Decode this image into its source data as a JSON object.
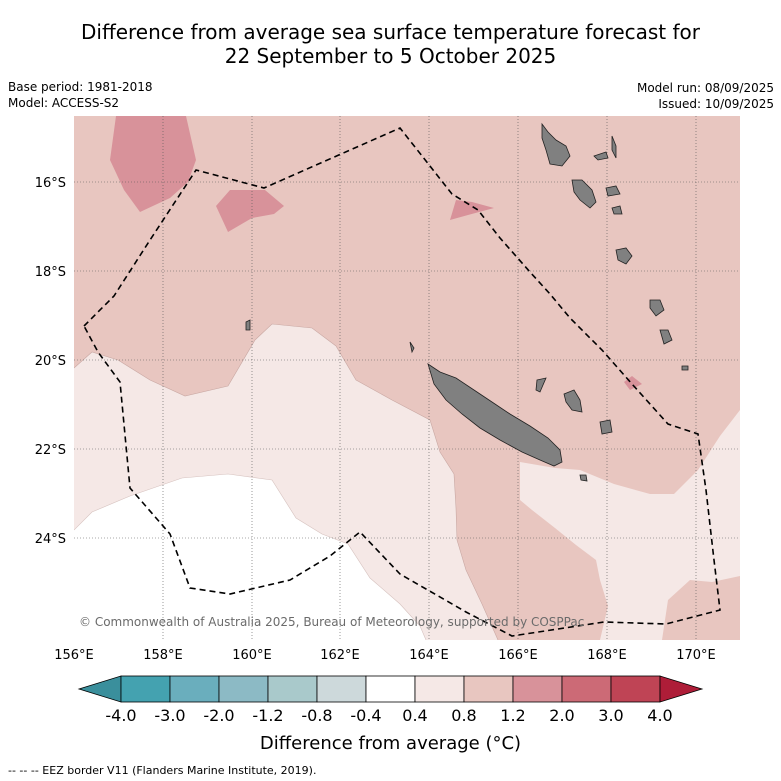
{
  "title_line1": "Difference from average sea surface temperature forecast for",
  "title_line2": "22 September to 5 October 2025",
  "base_period": "Base period: 1981-2018",
  "model": "Model: ACCESS-S2",
  "model_run": "Model run: 08/09/2025",
  "issued": "Issued: 10/09/2025",
  "credit": "© Commonwealth of Australia 2025, Bureau of Meteorology, supported by COSPPac",
  "lat_labels": [
    "16°S",
    "18°S",
    "20°S",
    "22°S",
    "24°S"
  ],
  "lon_labels": [
    "156°E",
    "158°E",
    "160°E",
    "162°E",
    "164°E",
    "166°E",
    "168°E",
    "170°E"
  ],
  "colorbar": {
    "title": "Difference from average (°C)",
    "labels": [
      "-4.0",
      "-3.0",
      "-2.0",
      "-1.2",
      "-0.8",
      "-0.4",
      "0.4",
      "0.8",
      "1.2",
      "2.0",
      "3.0",
      "4.0"
    ],
    "colors": [
      "#44a2b0",
      "#6aaebd",
      "#8cbac5",
      "#a9c9cb",
      "#cdd9db",
      "#ffffff",
      "#f5e8e6",
      "#e8c6c0",
      "#d8929a",
      "#cc6a76",
      "#bf4455"
    ],
    "under_color": "#3a8f9c",
    "over_color": "#ae1d38"
  },
  "colors": {
    "land": "#808080",
    "band_white": "#ffffff",
    "band_light": "#f5e8e6",
    "band_medium": "#e8c6c0",
    "band_dark": "#d8929a"
  },
  "footnote": "-- -- -- EEZ border V11 (Flanders Marine Institute, 2019)."
}
